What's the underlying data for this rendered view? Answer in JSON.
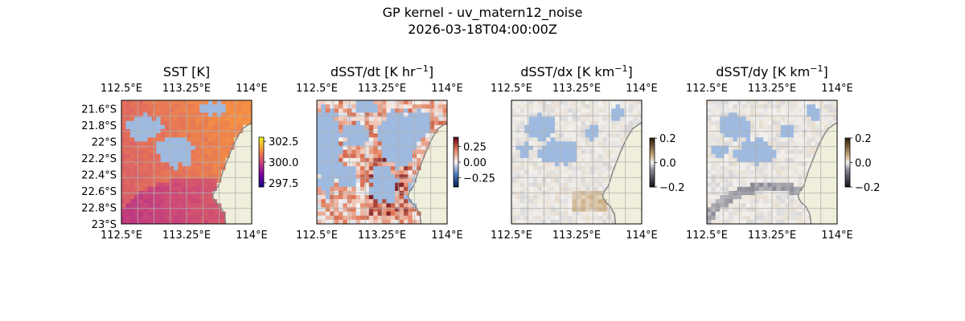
{
  "figure": {
    "title_line1": "GP kernel - uv_matern12_noise",
    "title_line2": "2026-03-18T04:00:00Z"
  },
  "colors": {
    "land": "#efefdc",
    "ocean_mask": "#9ebae0",
    "coast": "#808080",
    "grid": "#b0b0b0",
    "axis": "#000000"
  },
  "chart_data": [
    {
      "type": "heatmap",
      "title": "SST [K]",
      "title_unit_sup": "",
      "colormap": "plasma",
      "x_ticks_top": [
        "112.5°E",
        "113.25°E",
        "114°E"
      ],
      "x_ticks_bottom": [
        "112.5°E",
        "113.25°E",
        "114°E"
      ],
      "y_ticks_left": [
        "21.6°S",
        "21.8°S",
        "22°S",
        "22.2°S",
        "22.4°S",
        "22.6°S",
        "22.8°S",
        "23°S"
      ],
      "xlim": [
        112.5,
        114.0
      ],
      "ylim": [
        -23.0,
        -21.5
      ],
      "colorbar": {
        "ticks": [
          "297.5",
          "300.0",
          "302.5"
        ],
        "range": [
          297.0,
          303.0
        ]
      },
      "grid": true
    },
    {
      "type": "heatmap",
      "title": "dSST/dt [K hr",
      "title_unit_sup": "−1",
      "title_close": "]",
      "colormap": "diverging-red-blue",
      "x_ticks_top": [
        "112.5°E",
        "113.25°E",
        "114°E"
      ],
      "x_ticks_bottom": [
        "112.5°E",
        "113.25°E",
        "114°E"
      ],
      "y_ticks_left": [],
      "xlim": [
        112.5,
        114.0
      ],
      "ylim": [
        -23.0,
        -21.5
      ],
      "colorbar": {
        "ticks": [
          "0.25",
          "0.00",
          "−0.25"
        ],
        "range": [
          -0.4,
          0.4
        ]
      },
      "grid": true
    },
    {
      "type": "heatmap",
      "title": "dSST/dx [K km",
      "title_unit_sup": "−1",
      "title_close": "]",
      "colormap": "gray-brown",
      "x_ticks_top": [
        "112.5°E",
        "113.25°E",
        "114°E"
      ],
      "x_ticks_bottom": [
        "112.5°E",
        "113.25°E",
        "114°E"
      ],
      "y_ticks_left": [],
      "xlim": [
        112.5,
        114.0
      ],
      "ylim": [
        -23.0,
        -21.5
      ],
      "colorbar": {
        "ticks": [
          "0.2",
          "0.0",
          "−0.2"
        ],
        "range": [
          -0.2,
          0.2
        ]
      },
      "grid": true
    },
    {
      "type": "heatmap",
      "title": "dSST/dy [K km",
      "title_unit_sup": "−1",
      "title_close": "]",
      "colormap": "gray-brown",
      "x_ticks_top": [
        "112.5°E",
        "113.25°E",
        "114°E"
      ],
      "x_ticks_bottom": [
        "112.5°E",
        "113.25°E",
        "114°E"
      ],
      "y_ticks_left": [],
      "xlim": [
        112.5,
        114.0
      ],
      "ylim": [
        -23.0,
        -21.5
      ],
      "colorbar": {
        "ticks": [
          "0.2",
          "0.0",
          "−0.2"
        ],
        "range": [
          -0.2,
          0.2
        ]
      },
      "grid": true
    }
  ]
}
